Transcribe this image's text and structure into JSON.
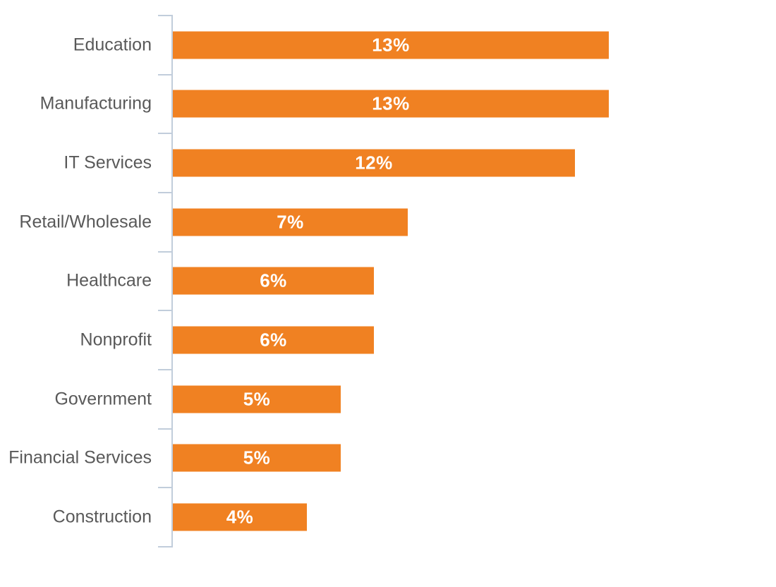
{
  "chart_data": {
    "type": "bar",
    "orientation": "horizontal",
    "title": "",
    "xlabel": "",
    "ylabel": "",
    "unit": "percent",
    "categories": [
      "Education",
      "Manufacturing",
      "IT Services",
      "Retail/Wholesale",
      "Healthcare",
      "Nonprofit",
      "Government",
      "Financial Services",
      "Construction"
    ],
    "values": [
      13,
      13,
      12,
      7,
      6,
      6,
      5,
      5,
      4
    ],
    "data_labels": [
      "13%",
      "13%",
      "12%",
      "7%",
      "6%",
      "6%",
      "5%",
      "5%",
      "4%"
    ],
    "xlim": [
      0,
      18
    ],
    "grid": false,
    "legend": false,
    "data_labels_position": "center-inside",
    "category_labels_position": "left-of-axis",
    "colors": {
      "bar": "#F08122",
      "axis": "#C1CDDB",
      "category_label": "#595959",
      "value_label": "#FFFFFF",
      "background": "#FFFFFF"
    }
  }
}
